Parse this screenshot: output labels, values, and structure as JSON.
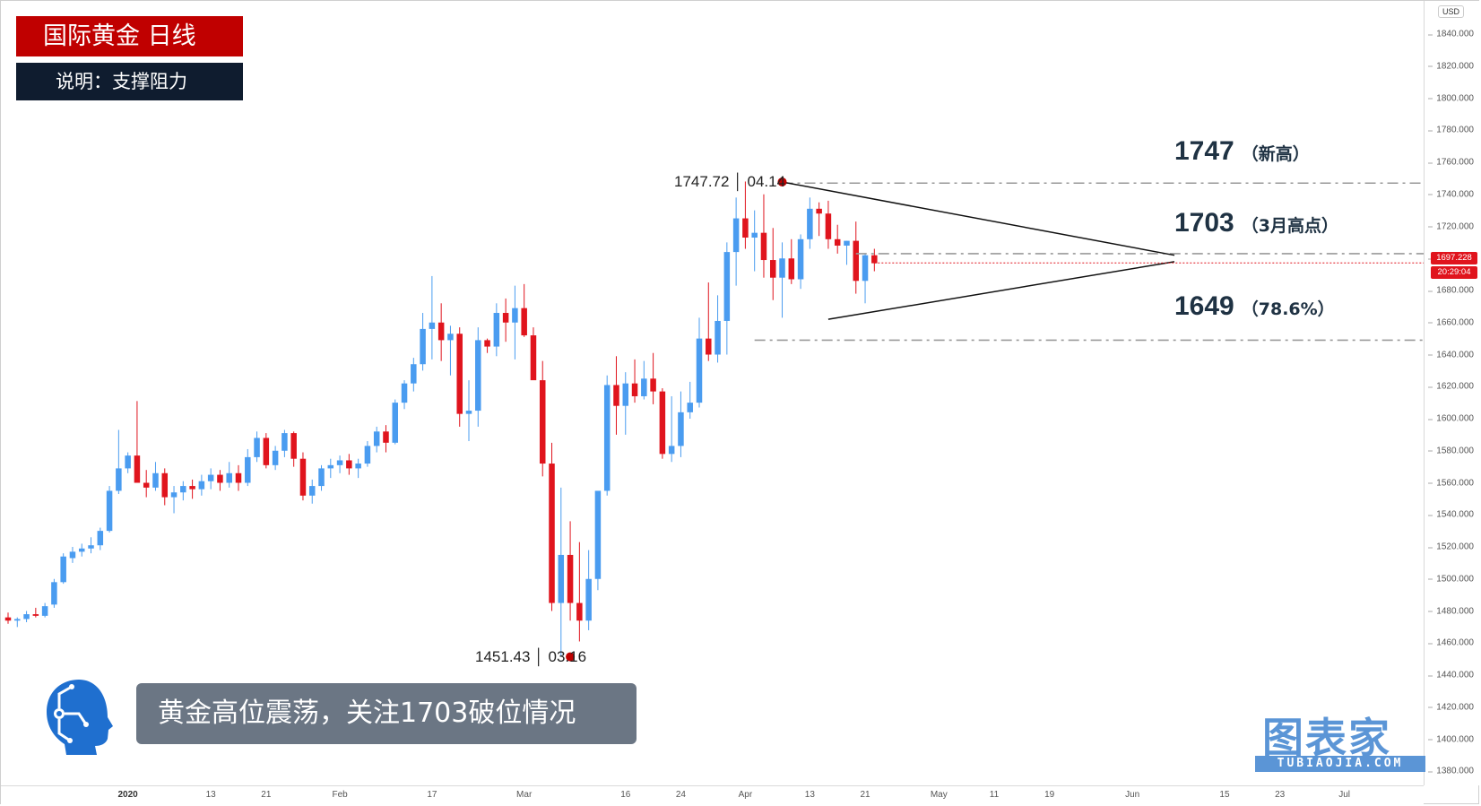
{
  "header": {
    "title": "国际黄金  日线",
    "subtitle": "说明：支撑阻力"
  },
  "currency": "USD",
  "levels": [
    {
      "value": "1747",
      "note": "（新高）"
    },
    {
      "value": "1703",
      "note": "（3月高点）"
    },
    {
      "value": "1649",
      "note": "（78.6%）"
    }
  ],
  "callouts": {
    "high": "1747.72 │ 04.14",
    "low": "1451.43 │ 03.16"
  },
  "last_price": {
    "price": "1697.228",
    "countdown": "20:29:04"
  },
  "banner": "黄金高位震荡，关注1703破位情况",
  "brand": {
    "name": "图表家",
    "site": "TUBIAOJIA.COM"
  },
  "colors": {
    "up": "#4a9cf0",
    "down": "#e0141d",
    "title_bg": "#c00000",
    "subtitle_bg": "#0f1c2f",
    "banner_bg": "#6b7684",
    "level_text": "#1f3243"
  },
  "chart_data": {
    "type": "candlestick",
    "ylim": [
      1370,
      1850
    ],
    "yticks": [
      "1840.000",
      "1820.000",
      "1800.000",
      "1780.000",
      "1760.000",
      "1740.000",
      "1720.000",
      "1700.000",
      "1680.000",
      "1660.000",
      "1640.000",
      "1620.000",
      "1600.000",
      "1580.000",
      "1560.000",
      "1540.000",
      "1520.000",
      "1500.000",
      "1480.000",
      "1460.000",
      "1440.000",
      "1420.000",
      "1400.000",
      "1380.000"
    ],
    "xticks": [
      {
        "label": "2020",
        "bar": 13,
        "bold": true
      },
      {
        "label": "13",
        "bar": 22
      },
      {
        "label": "21",
        "bar": 28
      },
      {
        "label": "Feb",
        "bar": 36
      },
      {
        "label": "17",
        "bar": 46
      },
      {
        "label": "Mar",
        "bar": 56
      },
      {
        "label": "16",
        "bar": 67
      },
      {
        "label": "24",
        "bar": 73
      },
      {
        "label": "Apr",
        "bar": 80
      },
      {
        "label": "13",
        "bar": 87
      },
      {
        "label": "21",
        "bar": 93
      },
      {
        "label": "May",
        "bar": 101
      },
      {
        "label": "11",
        "bar": 107
      },
      {
        "label": "19",
        "bar": 113
      },
      {
        "label": "Jun",
        "bar": 122
      },
      {
        "label": "15",
        "bar": 132
      },
      {
        "label": "23",
        "bar": 138
      },
      {
        "label": "Jul",
        "bar": 145
      }
    ],
    "ohlc": [
      [
        1476,
        1479,
        1472,
        1474
      ],
      [
        1474,
        1476,
        1470,
        1475
      ],
      [
        1475,
        1480,
        1473,
        1478
      ],
      [
        1478,
        1482,
        1476,
        1477
      ],
      [
        1477,
        1485,
        1476,
        1483
      ],
      [
        1484,
        1500,
        1482,
        1498
      ],
      [
        1498,
        1516,
        1497,
        1514
      ],
      [
        1513,
        1520,
        1510,
        1517
      ],
      [
        1517,
        1522,
        1514,
        1519
      ],
      [
        1519,
        1526,
        1516,
        1521
      ],
      [
        1521,
        1532,
        1518,
        1530
      ],
      [
        1530,
        1558,
        1529,
        1555
      ],
      [
        1555,
        1593,
        1553,
        1569
      ],
      [
        1569,
        1579,
        1566,
        1577
      ],
      [
        1577,
        1611,
        1560,
        1560
      ],
      [
        1560,
        1568,
        1551,
        1557
      ],
      [
        1557,
        1573,
        1555,
        1566
      ],
      [
        1566,
        1569,
        1546,
        1551
      ],
      [
        1551,
        1558,
        1541,
        1554
      ],
      [
        1554,
        1561,
        1549,
        1558
      ],
      [
        1558,
        1562,
        1550,
        1556
      ],
      [
        1556,
        1565,
        1552,
        1561
      ],
      [
        1561,
        1569,
        1556,
        1565
      ],
      [
        1565,
        1568,
        1555,
        1560
      ],
      [
        1560,
        1573,
        1557,
        1566
      ],
      [
        1566,
        1571,
        1555,
        1560
      ],
      [
        1560,
        1581,
        1558,
        1576
      ],
      [
        1576,
        1592,
        1573,
        1588
      ],
      [
        1588,
        1591,
        1569,
        1571
      ],
      [
        1571,
        1583,
        1568,
        1580
      ],
      [
        1580,
        1593,
        1576,
        1591
      ],
      [
        1591,
        1592,
        1570,
        1575
      ],
      [
        1575,
        1579,
        1549,
        1552
      ],
      [
        1552,
        1562,
        1547,
        1558
      ],
      [
        1558,
        1571,
        1555,
        1569
      ],
      [
        1569,
        1575,
        1563,
        1571
      ],
      [
        1571,
        1577,
        1566,
        1574
      ],
      [
        1574,
        1578,
        1565,
        1569
      ],
      [
        1569,
        1575,
        1563,
        1572
      ],
      [
        1572,
        1586,
        1570,
        1583
      ],
      [
        1583,
        1595,
        1579,
        1592
      ],
      [
        1592,
        1596,
        1579,
        1585
      ],
      [
        1585,
        1612,
        1584,
        1610
      ],
      [
        1610,
        1624,
        1606,
        1622
      ],
      [
        1622,
        1638,
        1617,
        1634
      ],
      [
        1634,
        1666,
        1630,
        1656
      ],
      [
        1656,
        1689,
        1637,
        1660
      ],
      [
        1660,
        1672,
        1636,
        1649
      ],
      [
        1649,
        1658,
        1627,
        1653
      ],
      [
        1653,
        1657,
        1595,
        1603
      ],
      [
        1603,
        1624,
        1586,
        1605
      ],
      [
        1605,
        1657,
        1595,
        1649
      ],
      [
        1649,
        1650,
        1641,
        1645
      ],
      [
        1645,
        1672,
        1639,
        1666
      ],
      [
        1666,
        1675,
        1648,
        1660
      ],
      [
        1660,
        1683,
        1637,
        1669
      ],
      [
        1669,
        1684,
        1651,
        1652
      ],
      [
        1652,
        1657,
        1626,
        1624
      ],
      [
        1624,
        1636,
        1564,
        1572
      ],
      [
        1572,
        1585,
        1480,
        1485
      ],
      [
        1485,
        1557,
        1452,
        1515
      ],
      [
        1515,
        1536,
        1474,
        1485
      ],
      [
        1485,
        1523,
        1461,
        1474
      ],
      [
        1474,
        1518,
        1468,
        1500
      ],
      [
        1500,
        1552,
        1493,
        1555
      ],
      [
        1555,
        1627,
        1552,
        1621
      ],
      [
        1621,
        1639,
        1590,
        1608
      ],
      [
        1608,
        1629,
        1590,
        1622
      ],
      [
        1622,
        1637,
        1610,
        1614
      ],
      [
        1614,
        1636,
        1612,
        1625
      ],
      [
        1625,
        1641,
        1609,
        1617
      ],
      [
        1617,
        1619,
        1575,
        1578
      ],
      [
        1578,
        1614,
        1573,
        1583
      ],
      [
        1583,
        1617,
        1576,
        1604
      ],
      [
        1604,
        1623,
        1600,
        1610
      ],
      [
        1610,
        1663,
        1607,
        1650
      ],
      [
        1650,
        1685,
        1636,
        1640
      ],
      [
        1640,
        1677,
        1635,
        1661
      ],
      [
        1661,
        1710,
        1640,
        1704
      ],
      [
        1704,
        1738,
        1683,
        1725
      ],
      [
        1725,
        1748,
        1706,
        1713
      ],
      [
        1713,
        1730,
        1692,
        1716
      ],
      [
        1716,
        1740,
        1688,
        1699
      ],
      [
        1699,
        1719,
        1674,
        1688
      ],
      [
        1688,
        1710,
        1663,
        1700
      ],
      [
        1700,
        1712,
        1684,
        1687
      ],
      [
        1687,
        1715,
        1681,
        1712
      ],
      [
        1712,
        1738,
        1706,
        1731
      ],
      [
        1731,
        1735,
        1714,
        1728
      ],
      [
        1728,
        1736,
        1706,
        1712
      ],
      [
        1712,
        1721,
        1703,
        1708
      ],
      [
        1708,
        1711,
        1696,
        1711
      ],
      [
        1711,
        1723,
        1678,
        1686
      ],
      [
        1686,
        1703,
        1672,
        1702
      ],
      [
        1702,
        1706,
        1692,
        1697
      ]
    ]
  }
}
